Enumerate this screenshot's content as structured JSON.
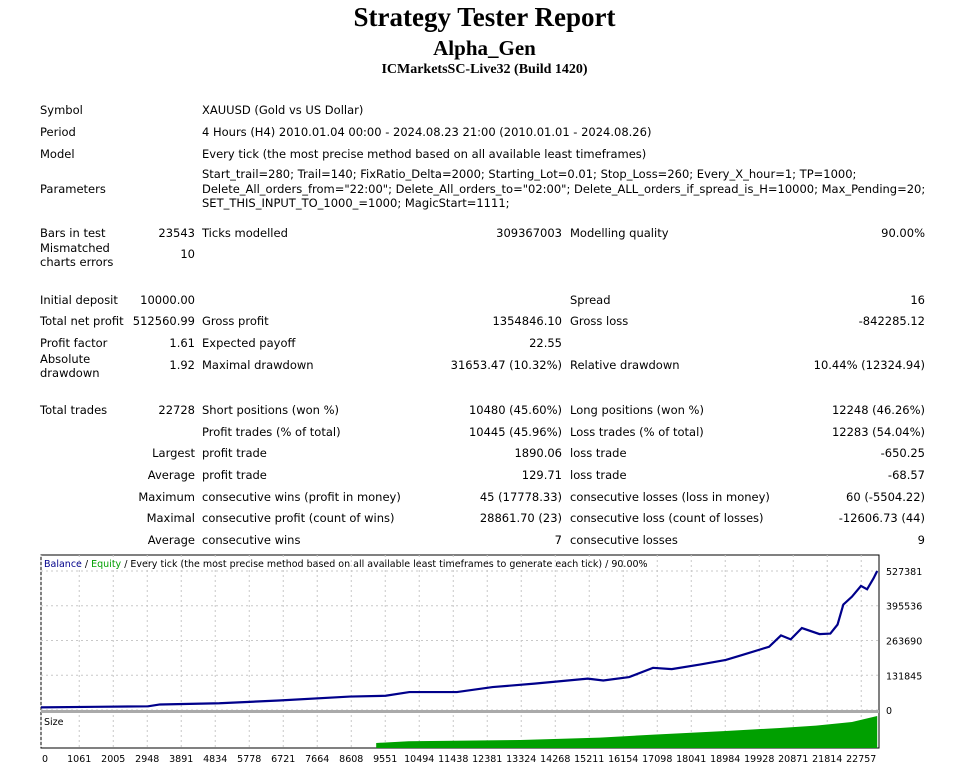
{
  "header": {
    "title": "Strategy Tester Report",
    "expert": "Alpha_Gen",
    "server": "ICMarketsSC-Live32 (Build 1420)"
  },
  "info": {
    "symbol_label": "Symbol",
    "symbol": "XAUUSD (Gold vs US Dollar)",
    "period_label": "Period",
    "period": "4 Hours (H4) 2010.01.04 00:00 - 2024.08.23 21:00 (2010.01.01 - 2024.08.26)",
    "model_label": "Model",
    "model": "Every tick (the most precise method based on all available least timeframes)",
    "parameters_label": "Parameters",
    "parameters": [
      "Start_trail=280; Trail=140; FixRatio_Delta=2000; Starting_Lot=0.01; Stop_Loss=260; Every_X_hour=1; TP=1000;",
      "Delete_All_orders_from=\"22:00\"; Delete_All_orders_to=\"02:00\"; Delete_ALL_orders_if_spread_is_H=10000; Max_Pending=20;",
      "SET_THIS_INPUT_TO_1000_=1000; MagicStart=1111;"
    ]
  },
  "stats": [
    {
      "top": 226,
      "l1": "Bars in test",
      "v1": "23543",
      "l2": "Ticks modelled",
      "v2": "309367003",
      "l3": "Modelling quality",
      "v3": "90.00%"
    },
    {
      "top": 247,
      "l1a": "Mismatched",
      "l1b": "charts errors",
      "v1": "10"
    },
    {
      "top": 293,
      "l1": "Initial deposit",
      "v1": "10000.00",
      "l3": "Spread",
      "v3": "16"
    },
    {
      "top": 314,
      "l1": "Total net profit",
      "v1": "512560.99",
      "l2": "Gross profit",
      "v2": "1354846.10",
      "l3": "Gross loss",
      "v3": "-842285.12"
    },
    {
      "top": 336,
      "l1": "Profit factor",
      "v1": "1.61",
      "l2": "Expected payoff",
      "v2": "22.55"
    },
    {
      "top": 358,
      "l1a": "Absolute",
      "l1b": "drawdown",
      "v1": "1.92",
      "l2": "Maximal drawdown",
      "v2": "31653.47 (10.32%)",
      "l3": "Relative drawdown",
      "v3": "10.44% (12324.94)"
    },
    {
      "top": 403,
      "l1": "Total trades",
      "v1": "22728",
      "l2": "Short positions (won %)",
      "v2": "10480 (45.60%)",
      "l3": "Long positions (won %)",
      "v3": "12248 (46.26%)"
    },
    {
      "top": 425,
      "l2": "Profit trades (% of total)",
      "v2": "10445 (45.96%)",
      "l3": "Loss trades (% of total)",
      "v3": "12283 (54.04%)"
    },
    {
      "top": 446,
      "v1": "Largest",
      "l2": "profit trade",
      "v2": "1890.06",
      "l3": "loss trade",
      "v3": "-650.25"
    },
    {
      "top": 468,
      "v1": "Average",
      "l2": "profit trade",
      "v2": "129.71",
      "l3": "loss trade",
      "v3": "-68.57"
    },
    {
      "top": 490,
      "v1": "Maximum",
      "l2": "consecutive wins (profit in money)",
      "v2": "45 (17778.33)",
      "l3": "consecutive losses (loss in money)",
      "v3": "60 (-5504.22)"
    },
    {
      "top": 511,
      "v1": "Maximal",
      "l2": "consecutive profit (count of wins)",
      "v2": "28861.70 (23)",
      "l3": "consecutive loss (count of losses)",
      "v3": "-12606.73 (44)"
    },
    {
      "top": 533,
      "v1": "Average",
      "l2": "consecutive wins",
      "v2": "7",
      "l3": "consecutive losses",
      "v3": "9"
    }
  ],
  "chart_data": {
    "type": "line",
    "legend": {
      "balance": "Balance",
      "sep": " / ",
      "equity": "Equity",
      "rest": " / Every tick (the most precise method based on all available least timeframes to generate each tick) / 90.00%"
    },
    "size_label": "Size",
    "colors": {
      "balance": "#00008b",
      "equity": "#00a000",
      "size": "#00a000",
      "grid": "#c8c8c8"
    },
    "ylim": [
      0,
      527381
    ],
    "yticks": [
      "527381",
      "395536",
      "263690",
      "131845",
      "0"
    ],
    "xticks": [
      "0",
      "1061",
      "2005",
      "2948",
      "3891",
      "4834",
      "5778",
      "6721",
      "7664",
      "8608",
      "9551",
      "10494",
      "11438",
      "12381",
      "13324",
      "14268",
      "15211",
      "16154",
      "17098",
      "18041",
      "18984",
      "19928",
      "20871",
      "21814",
      "22757"
    ],
    "xmax": 23250,
    "balance": [
      [
        0,
        10000
      ],
      [
        1500,
        12000
      ],
      [
        2970,
        14000
      ],
      [
        3300,
        21000
      ],
      [
        4950,
        25600
      ],
      [
        6600,
        36000
      ],
      [
        8570,
        51000
      ],
      [
        9560,
        54000
      ],
      [
        10220,
        68000
      ],
      [
        11540,
        68000
      ],
      [
        12530,
        87000
      ],
      [
        13690,
        100000
      ],
      [
        15170,
        119000
      ],
      [
        15600,
        112000
      ],
      [
        16320,
        125000
      ],
      [
        16980,
        160000
      ],
      [
        17500,
        155000
      ],
      [
        18300,
        173000
      ],
      [
        19000,
        190000
      ],
      [
        19460,
        209000
      ],
      [
        20200,
        240000
      ],
      [
        20530,
        283000
      ],
      [
        20800,
        268000
      ],
      [
        21110,
        311000
      ],
      [
        21600,
        288000
      ],
      [
        21900,
        290000
      ],
      [
        22100,
        324000
      ],
      [
        22260,
        400000
      ],
      [
        22500,
        430000
      ],
      [
        22750,
        471000
      ],
      [
        22920,
        458000
      ],
      [
        23100,
        500000
      ],
      [
        23200,
        527381
      ]
    ],
    "size": [
      [
        9300,
        0.1
      ],
      [
        10200,
        0.16
      ],
      [
        13300,
        0.2
      ],
      [
        15500,
        0.28
      ],
      [
        17000,
        0.38
      ],
      [
        19000,
        0.5
      ],
      [
        20500,
        0.6
      ],
      [
        21500,
        0.68
      ],
      [
        22500,
        0.8
      ],
      [
        23200,
        1.0
      ]
    ]
  }
}
